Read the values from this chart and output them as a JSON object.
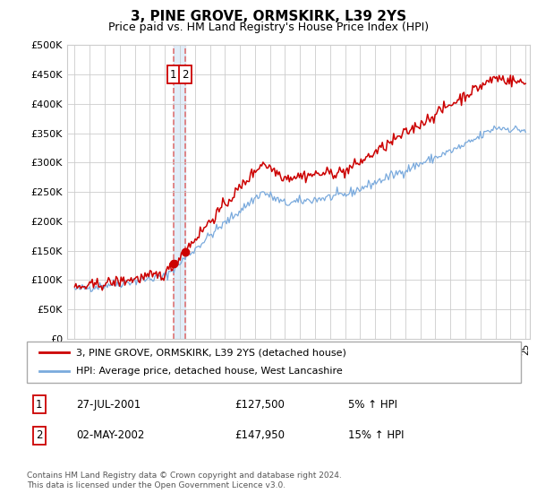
{
  "title": "3, PINE GROVE, ORMSKIRK, L39 2YS",
  "subtitle": "Price paid vs. HM Land Registry's House Price Index (HPI)",
  "red_label": "3, PINE GROVE, ORMSKIRK, L39 2YS (detached house)",
  "blue_label": "HPI: Average price, detached house, West Lancashire",
  "annotation1_date": "27-JUL-2001",
  "annotation1_price": "£127,500",
  "annotation1_pct": "5% ↑ HPI",
  "annotation2_date": "02-MAY-2002",
  "annotation2_price": "£147,950",
  "annotation2_pct": "15% ↑ HPI",
  "footnote": "Contains HM Land Registry data © Crown copyright and database right 2024.\nThis data is licensed under the Open Government Licence v3.0.",
  "ylim": [
    0,
    500000
  ],
  "yticks": [
    0,
    50000,
    100000,
    150000,
    200000,
    250000,
    300000,
    350000,
    400000,
    450000,
    500000
  ],
  "year_start": 1995,
  "year_end": 2025,
  "sale1_year": 2001.58,
  "sale1_price": 127500,
  "sale2_year": 2002.34,
  "sale2_price": 147950,
  "grid_color": "#cccccc",
  "red_color": "#cc0000",
  "blue_color": "#7aaadd",
  "vline_color": "#dd6666",
  "shade_color": "#d0e4f5"
}
